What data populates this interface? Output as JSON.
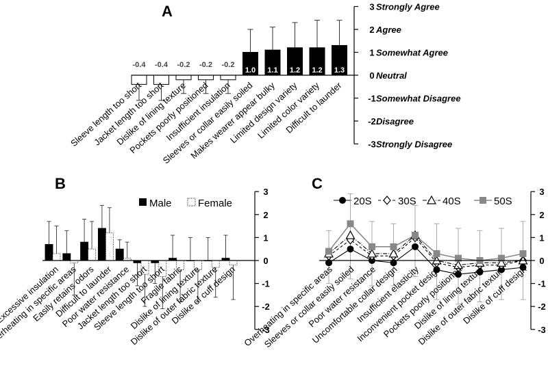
{
  "chart_data": [
    {
      "panel": "A",
      "type": "bar",
      "title": "",
      "panel_label": "A",
      "categories": [
        "Sleeve length too short",
        "Jacket length too short",
        "Dislike of lining texture",
        "Pockets poorly positioned",
        "Insufficient insulation",
        "Sleeves or collar easily soiled",
        "Makes wearer appear bulky",
        "Limited design variety",
        "Limited color variety",
        "Difficult to launder"
      ],
      "values": [
        -0.4,
        -0.4,
        -0.2,
        -0.2,
        -0.2,
        1.0,
        1.1,
        1.2,
        1.2,
        1.3
      ],
      "value_labels": [
        "-0.4",
        "-0.4",
        "-0.2",
        "-0.2",
        "-0.2",
        "1.0",
        "1.1",
        "1.2",
        "1.2",
        "1.3"
      ],
      "error_upper": [
        0.7,
        0.7,
        0.6,
        0.6,
        0.6,
        1.0,
        1.0,
        1.1,
        1.2,
        1.1
      ],
      "ylim": [
        -3,
        3
      ],
      "yticks": [
        "-3",
        "-2",
        "-1",
        "0",
        "1",
        "2",
        "3"
      ],
      "scale_labels": [
        "Strongly Disagree",
        "Disagree",
        "Somewhat Disagree",
        "Neutral",
        "Somewhat Agree",
        "Agree",
        "Strongly Agree"
      ],
      "colors": {
        "positive": "#000000",
        "negative": "#ffffff"
      }
    },
    {
      "panel": "B",
      "type": "bar",
      "title": "",
      "panel_label": "B",
      "categories": [
        "Excessive insulation",
        "Overheating in specific areas",
        "Easily retains odors",
        "Difficult to launder",
        "Poor water resistance",
        "Jacket length too short",
        "Sleeve length too short",
        "Fragile fabric",
        "Dislike of lining texture",
        "Dislike of outer fabric texture",
        "Dislike of cuff design"
      ],
      "series": [
        {
          "name": "Male",
          "values": [
            0.7,
            0.3,
            0.8,
            1.4,
            0.5,
            -0.1,
            -0.1,
            0.1,
            0.0,
            0.0,
            0.1
          ],
          "error_upper": [
            1.0,
            1.0,
            1.0,
            1.0,
            0.4,
            1.0,
            0.9,
            1.0,
            1.0,
            1.0,
            1.0
          ],
          "color": "#000000"
        },
        {
          "name": "Female",
          "values": [
            0.3,
            -0.1,
            0.5,
            1.2,
            0.1,
            -0.6,
            -0.7,
            -0.4,
            -0.4,
            -0.3,
            -0.2
          ],
          "error_upper": [
            1.2,
            1.4,
            1.2,
            1.1,
            0.7,
            1.4,
            1.4,
            1.4,
            1.4,
            1.3,
            1.5
          ],
          "color": "#ffffff"
        }
      ],
      "ylim": [
        -3,
        3
      ],
      "yticks": [
        "-3",
        "-2",
        "-1",
        "0",
        "1",
        "2",
        "3"
      ],
      "legend_position": "top"
    },
    {
      "panel": "C",
      "type": "line",
      "title": "",
      "panel_label": "C",
      "categories": [
        "Overheating in specific areas",
        "Sleeves or collar easily soiled",
        "Poor water resistance",
        "Uncomfortable collar design",
        "Insufficient elasticity",
        "Inconvenient pocket design",
        "Pockets poorly positioned",
        "Dislike of lining texture",
        "Dislike of outer fabric texture",
        "Dislike of cuff design"
      ],
      "series": [
        {
          "name": "20S",
          "values": [
            -0.1,
            0.5,
            0.0,
            -0.1,
            0.6,
            -0.4,
            -0.6,
            -0.5,
            -0.4,
            -0.3
          ],
          "marker": "circle",
          "color": "#000000",
          "dash": "solid"
        },
        {
          "name": "30S",
          "values": [
            0.2,
            0.9,
            0.2,
            0.2,
            1.0,
            -0.1,
            -0.3,
            -0.2,
            -0.2,
            0.0
          ],
          "marker": "diamond",
          "color": "#000000",
          "dash": "dashed"
        },
        {
          "name": "40S",
          "values": [
            0.3,
            1.1,
            0.3,
            0.3,
            1.1,
            0.0,
            -0.2,
            -0.1,
            -0.1,
            0.0
          ],
          "marker": "triangle",
          "color": "#000000",
          "dash": "dashdot"
        },
        {
          "name": "50S",
          "values": [
            0.4,
            1.6,
            0.6,
            0.6,
            1.1,
            0.3,
            0.1,
            0.0,
            0.1,
            0.3
          ],
          "marker": "square",
          "color": "#888888",
          "dash": "solid"
        }
      ],
      "error_upper": [
        0.9,
        1.3,
        1.1,
        1.0,
        1.3,
        1.3,
        1.3,
        1.3,
        1.3,
        1.4
      ],
      "ylim": [
        -3,
        3
      ],
      "yticks": [
        "-3",
        "-2",
        "-1",
        "0",
        "1",
        "2",
        "3"
      ],
      "legend_position": "top"
    }
  ]
}
